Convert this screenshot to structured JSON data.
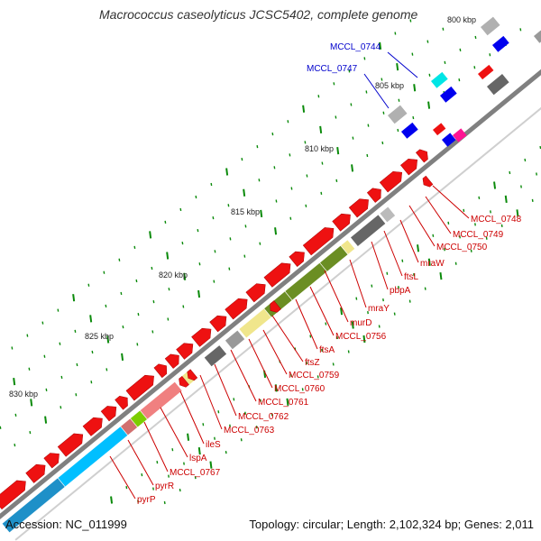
{
  "title": "Macrococcus caseolyticus JCSC5402, complete genome",
  "footer": {
    "accession": "Accession: NC_011999",
    "topology": "Topology: circular; Length: 2,102,324 bp; Genes: 2,011"
  },
  "scale_labels": [
    "800 kbp",
    "805 kbp",
    "810 kbp",
    "815 kbp",
    "820 kbp",
    "825 kbp",
    "830 kbp"
  ],
  "blue_labels": [
    "MCCL_0744",
    "MCCL_0747"
  ],
  "gene_labels": [
    "MCCL_0748",
    "MCCL_0749",
    "MCCL_0750",
    "mraW",
    "ftsL",
    "pbpA",
    "mraY",
    "murD",
    "MCCL_0756",
    "ftsA",
    "ftsZ",
    "MCCL_0759",
    "MCCL_0760",
    "MCCL_0761",
    "MCCL_0762",
    "MCCL_0763",
    "ileS",
    "lspA",
    "MCCL_0767",
    "pyrR",
    "pyrP"
  ],
  "colors": {
    "cds": "#ee1111",
    "backbone": "#808080",
    "ticks": "#0a8a0a",
    "labels_red": "#cc0000",
    "labels_blue": "#0000cc",
    "dark_gray": "#666666",
    "olive": "#6b8e23",
    "khaki": "#f0e68c",
    "salmon": "#f08080",
    "deep_sky_blue": "#00bfff",
    "blue": "#0000ee",
    "cyan": "#00e5e5",
    "magenta": "#ff1493"
  }
}
